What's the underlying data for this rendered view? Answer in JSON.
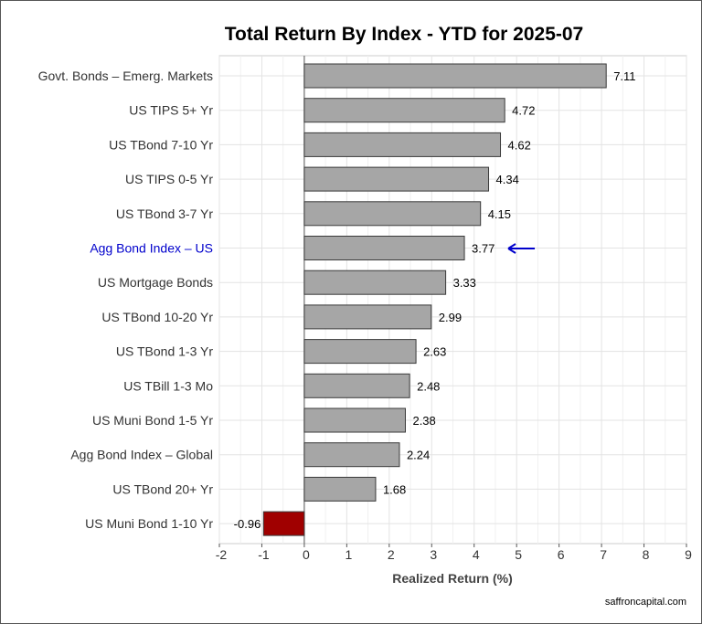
{
  "chart_data": {
    "type": "bar",
    "orientation": "horizontal",
    "title": "Total Return By Index - YTD for 2025-07",
    "xlabel": "Realized Return (%)",
    "ylabel": "",
    "xlim": [
      -2,
      9
    ],
    "xticks": [
      -2,
      -1,
      0,
      1,
      2,
      3,
      4,
      5,
      6,
      7,
      8,
      9
    ],
    "grid": true,
    "categories": [
      "Govt. Bonds – Emerg. Markets",
      "US TIPS 5+ Yr",
      "US TBond 7-10 Yr",
      "US TIPS 0-5 Yr",
      "US TBond 3-7 Yr",
      "Agg Bond Index – US",
      "US Mortgage Bonds",
      "US TBond 10-20 Yr",
      "US TBond 1-3 Yr",
      "US TBill 1-3 Mo",
      "US Muni Bond 1-5 Yr",
      "Agg Bond Index – Global",
      "US TBond 20+ Yr",
      "US Muni Bond 1-10 Yr"
    ],
    "values": [
      7.11,
      4.72,
      4.62,
      4.34,
      4.15,
      3.77,
      3.33,
      2.99,
      2.63,
      2.48,
      2.38,
      2.24,
      1.68,
      -0.96
    ],
    "value_labels": [
      "7.11",
      "4.72",
      "4.62",
      "4.34",
      "4.15",
      "3.77",
      "3.33",
      "2.99",
      "2.63",
      "2.48",
      "2.38",
      "2.24",
      "1.68",
      "-0.96"
    ],
    "highlight_category": "Agg Bond Index – US",
    "colors": {
      "positive_bar": "#a6a6a6",
      "negative_bar": "#a00000",
      "bar_outline": "#3a3a3a",
      "highlight_label": "#0000cc",
      "highlight_arrow": "#0000cc",
      "category_label": "#333333",
      "grid": "#e3e3e3"
    }
  },
  "footer": {
    "source": "saffroncapital.com"
  }
}
